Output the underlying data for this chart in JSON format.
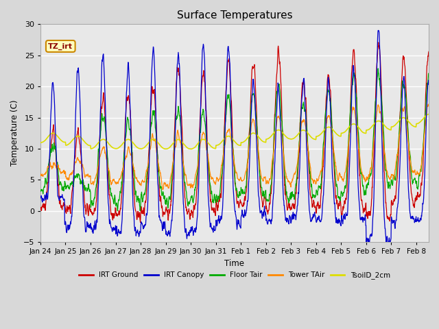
{
  "title": "Surface Temperatures",
  "xlabel": "Time",
  "ylabel": "Temperature (C)",
  "ylim": [
    -5,
    30
  ],
  "xlim_days": 15.5,
  "tick_labels": [
    "Jan 24",
    "Jan 25",
    "Jan 26",
    "Jan 27",
    "Jan 28",
    "Jan 29",
    "Jan 30",
    "Jan 31",
    "Feb 1",
    "Feb 2",
    "Feb 3",
    "Feb 4",
    "Feb 5",
    "Feb 6",
    "Feb 7",
    "Feb 8"
  ],
  "annotation_text": "TZ_irt",
  "background_color": "#d8d8d8",
  "plot_bg_color": "#e8e8e8",
  "grid_color": "#ffffff",
  "colors": {
    "IRT Ground": "#cc0000",
    "IRT Canopy": "#0000cc",
    "Floor Tair": "#00aa00",
    "Tower TAir": "#ff8800",
    "TsoilD_2cm": "#dddd00"
  },
  "legend_entries": [
    "IRT Ground",
    "IRT Canopy",
    "Floor Tair",
    "Tower TAir",
    "TsoilD_2cm"
  ]
}
